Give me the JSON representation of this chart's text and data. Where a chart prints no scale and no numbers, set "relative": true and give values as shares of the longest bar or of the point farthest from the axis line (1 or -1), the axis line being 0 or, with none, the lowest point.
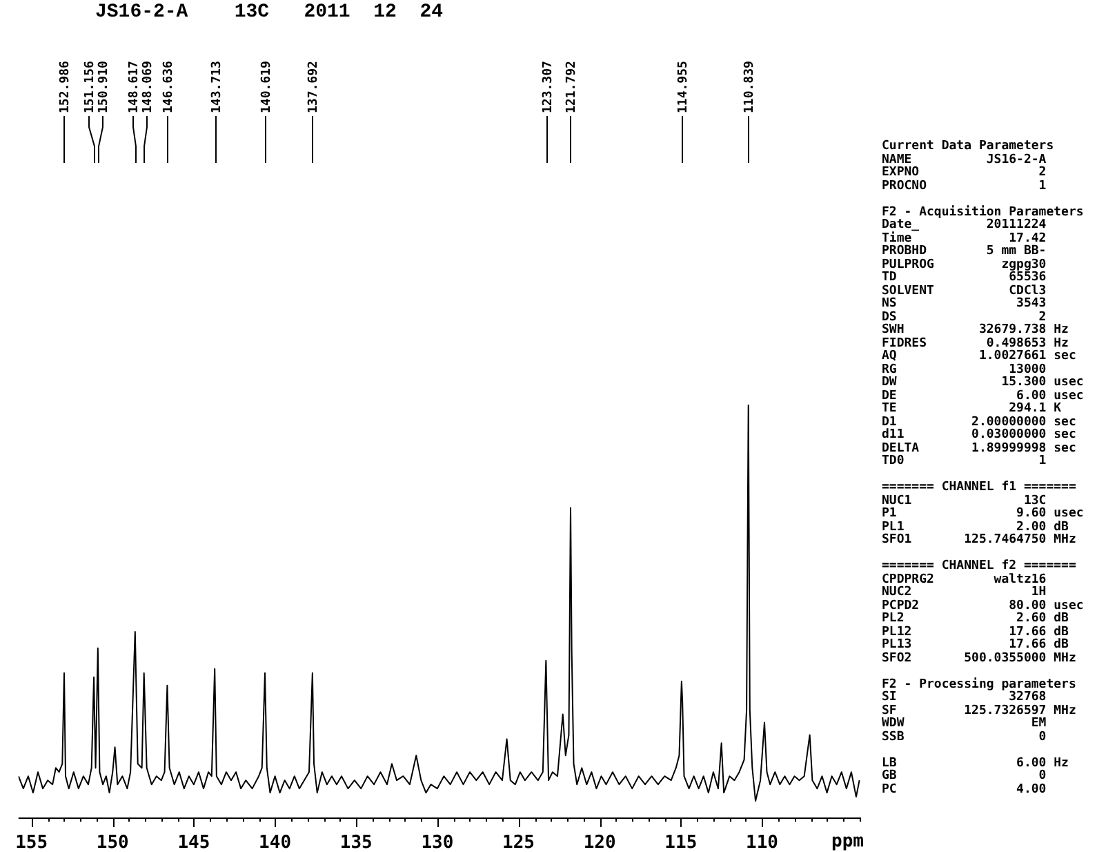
{
  "chart_data": {
    "type": "line",
    "title": "JS16-2-A    13C   2011  12  24",
    "xlabel": "ppm",
    "relative": true,
    "color": "#000000",
    "marker": "none",
    "xlim": [
      155.8,
      103.9
    ],
    "xticks": [
      155,
      {
        "value": 154,
        "label": null
      },
      {
        "value": 153,
        "label": null
      },
      {
        "value": 152,
        "label": null
      },
      {
        "value": 151,
        "label": null
      },
      150,
      {
        "value": 149,
        "label": null
      },
      {
        "value": 148,
        "label": null
      },
      {
        "value": 147,
        "label": null
      },
      {
        "value": 146,
        "label": null
      },
      145,
      {
        "value": 144,
        "label": null
      },
      {
        "value": 143,
        "label": null
      },
      {
        "value": 142,
        "label": null
      },
      {
        "value": 141,
        "label": null
      },
      140,
      {
        "value": 139,
        "label": null
      },
      {
        "value": 138,
        "label": null
      },
      {
        "value": 137,
        "label": null
      },
      {
        "value": 136,
        "label": null
      },
      135,
      {
        "value": 134,
        "label": null
      },
      {
        "value": 133,
        "label": null
      },
      {
        "value": 132,
        "label": null
      },
      {
        "value": 131,
        "label": null
      },
      130,
      {
        "value": 129,
        "label": null
      },
      {
        "value": 128,
        "label": null
      },
      {
        "value": 127,
        "label": null
      },
      {
        "value": 126,
        "label": null
      },
      125,
      {
        "value": 124,
        "label": null
      },
      {
        "value": 123,
        "label": null
      },
      {
        "value": 122,
        "label": null
      },
      {
        "value": 121,
        "label": null
      },
      120,
      {
        "value": 119,
        "label": null
      },
      {
        "value": 118,
        "label": null
      },
      {
        "value": 117,
        "label": null
      },
      {
        "value": 116,
        "label": null
      },
      115,
      {
        "value": 114,
        "label": null
      },
      {
        "value": 113,
        "label": null
      },
      {
        "value": 112,
        "label": null
      },
      {
        "value": 111,
        "label": null
      },
      110,
      {
        "value": 109,
        "label": null
      },
      {
        "value": 108,
        "label": null
      },
      {
        "value": 107,
        "label": null
      },
      {
        "value": 106,
        "label": null
      },
      {
        "value": 105,
        "label": null
      },
      {
        "value": 104,
        "label": null
      }
    ],
    "x": [
      155.8,
      155.5,
      155.2,
      154.9,
      154.6,
      154.3,
      154.0,
      153.7,
      153.5,
      153.3,
      153.1,
      152.986,
      152.9,
      152.7,
      152.4,
      152.1,
      151.8,
      151.5,
      151.3,
      151.156,
      151.05,
      150.91,
      150.8,
      150.6,
      150.4,
      150.2,
      150.0,
      149.86,
      149.7,
      149.4,
      149.1,
      148.9,
      148.617,
      148.45,
      148.2,
      148.069,
      147.9,
      147.6,
      147.3,
      147.0,
      146.8,
      146.636,
      146.5,
      146.2,
      145.9,
      145.6,
      145.3,
      145.0,
      144.7,
      144.4,
      144.1,
      143.9,
      143.713,
      143.6,
      143.3,
      143.0,
      142.7,
      142.4,
      142.1,
      141.8,
      141.4,
      141.0,
      140.8,
      140.619,
      140.5,
      140.3,
      140.0,
      139.7,
      139.4,
      139.1,
      138.8,
      138.5,
      138.2,
      137.9,
      137.692,
      137.6,
      137.4,
      137.1,
      136.8,
      136.5,
      136.2,
      135.9,
      135.5,
      135.1,
      134.7,
      134.3,
      133.9,
      133.5,
      133.1,
      132.8,
      132.5,
      132.1,
      131.7,
      131.3,
      131.0,
      130.7,
      130.4,
      130.0,
      129.6,
      129.2,
      128.8,
      128.4,
      128.0,
      127.6,
      127.2,
      126.8,
      126.4,
      126.0,
      125.72,
      125.5,
      125.2,
      124.9,
      124.6,
      124.2,
      123.8,
      123.5,
      123.307,
      123.15,
      122.9,
      122.6,
      122.27,
      122.1,
      121.9,
      121.792,
      121.72,
      121.6,
      121.4,
      121.1,
      120.8,
      120.5,
      120.2,
      119.9,
      119.6,
      119.2,
      118.8,
      118.4,
      118.0,
      117.6,
      117.2,
      116.8,
      116.4,
      116.0,
      115.6,
      115.3,
      115.1,
      114.955,
      114.9,
      114.8,
      114.5,
      114.2,
      113.9,
      113.6,
      113.3,
      113.0,
      112.7,
      112.5,
      112.35,
      112.0,
      111.7,
      111.4,
      111.1,
      110.95,
      110.839,
      110.75,
      110.6,
      110.4,
      110.1,
      109.85,
      109.7,
      109.5,
      109.2,
      108.9,
      108.6,
      108.3,
      108.0,
      107.7,
      107.4,
      107.06,
      106.9,
      106.6,
      106.3,
      106.0,
      105.7,
      105.4,
      105.1,
      104.8,
      104.5,
      104.2,
      104.0
    ],
    "values": [
      0.1,
      0.07,
      0.1,
      0.06,
      0.11,
      0.07,
      0.09,
      0.08,
      0.12,
      0.11,
      0.13,
      0.35,
      0.1,
      0.07,
      0.11,
      0.07,
      0.1,
      0.08,
      0.12,
      0.34,
      0.12,
      0.41,
      0.11,
      0.08,
      0.1,
      0.06,
      0.11,
      0.17,
      0.08,
      0.1,
      0.07,
      0.11,
      0.45,
      0.13,
      0.12,
      0.35,
      0.12,
      0.08,
      0.1,
      0.09,
      0.11,
      0.32,
      0.12,
      0.08,
      0.11,
      0.07,
      0.1,
      0.08,
      0.11,
      0.07,
      0.11,
      0.1,
      0.36,
      0.1,
      0.08,
      0.11,
      0.09,
      0.11,
      0.07,
      0.09,
      0.07,
      0.1,
      0.12,
      0.35,
      0.12,
      0.06,
      0.1,
      0.06,
      0.09,
      0.07,
      0.1,
      0.07,
      0.09,
      0.11,
      0.35,
      0.13,
      0.06,
      0.11,
      0.08,
      0.1,
      0.08,
      0.1,
      0.07,
      0.09,
      0.07,
      0.1,
      0.08,
      0.11,
      0.08,
      0.13,
      0.09,
      0.1,
      0.08,
      0.15,
      0.09,
      0.06,
      0.08,
      0.07,
      0.1,
      0.08,
      0.11,
      0.08,
      0.11,
      0.09,
      0.11,
      0.08,
      0.11,
      0.09,
      0.19,
      0.09,
      0.08,
      0.11,
      0.09,
      0.11,
      0.09,
      0.11,
      0.38,
      0.09,
      0.11,
      0.1,
      0.25,
      0.15,
      0.2,
      0.75,
      0.4,
      0.13,
      0.08,
      0.12,
      0.08,
      0.11,
      0.07,
      0.1,
      0.08,
      0.11,
      0.08,
      0.1,
      0.07,
      0.1,
      0.08,
      0.1,
      0.08,
      0.1,
      0.09,
      0.12,
      0.15,
      0.33,
      0.28,
      0.1,
      0.07,
      0.1,
      0.07,
      0.1,
      0.06,
      0.11,
      0.07,
      0.18,
      0.06,
      0.1,
      0.09,
      0.11,
      0.14,
      0.26,
      1.0,
      0.26,
      0.12,
      0.04,
      0.09,
      0.23,
      0.11,
      0.08,
      0.11,
      0.08,
      0.1,
      0.08,
      0.1,
      0.09,
      0.1,
      0.2,
      0.09,
      0.07,
      0.1,
      0.06,
      0.1,
      0.08,
      0.11,
      0.07,
      0.11,
      0.05,
      0.09
    ],
    "annotations": [
      {
        "text": "152.986",
        "x": 152.986
      },
      {
        "text": "151.156",
        "x": 151.156
      },
      {
        "text": "150.910",
        "x": 150.91
      },
      {
        "text": "148.617",
        "x": 148.617
      },
      {
        "text": "148.069",
        "x": 148.069
      },
      {
        "text": "146.636",
        "x": 146.636
      },
      {
        "text": "143.713",
        "x": 143.713
      },
      {
        "text": "140.619",
        "x": 140.619
      },
      {
        "text": "137.692",
        "x": 137.692
      },
      {
        "text": "123.307",
        "x": 123.307
      },
      {
        "text": "121.792",
        "x": 121.792
      },
      {
        "text": "114.955",
        "x": 114.955
      },
      {
        "text": "110.839",
        "x": 110.839
      },
      "Current Data Parameters",
      "NAME          JS16-2-A",
      "EXPNO                2",
      "PROCNO               1",
      "F2 - Acquisition Parameters",
      "Date_         20111224",
      "Time             17.42",
      "PROBHD        5 mm BB-",
      "PULPROG         zgpg30",
      "TD               65536",
      "SOLVENT          CDCl3",
      "NS                3543",
      "DS                   2",
      "SWH          32679.738 Hz",
      "FIDRES        0.498653 Hz",
      "AQ           1.0027661 sec",
      "RG               13000",
      "DW              15.300 usec",
      "DE                6.00 usec",
      "TE               294.1 K",
      "D1          2.00000000 sec",
      "d11         0.03000000 sec",
      "DELTA       1.89999998 sec",
      "TD0                  1",
      "======= CHANNEL f1 =======",
      "NUC1               13C",
      "P1                9.60 usec",
      "PL1               2.00 dB",
      "SFO1       125.7464750 MHz",
      "======= CHANNEL f2 =======",
      "CPDPRG2        waltz16",
      "NUC2                1H",
      "PCPD2            80.00 usec",
      "PL2               2.60 dB",
      "PL12             17.66 dB",
      "PL13             17.66 dB",
      "SFO2       500.0355000 MHz",
      "F2 - Processing parameters",
      "SI               32768",
      "SF         125.7326597 MHz",
      "WDW                 EM",
      "SSB                  0",
      "LB                6.00 Hz",
      "GB                   0",
      "PC                4.00"
    ]
  }
}
